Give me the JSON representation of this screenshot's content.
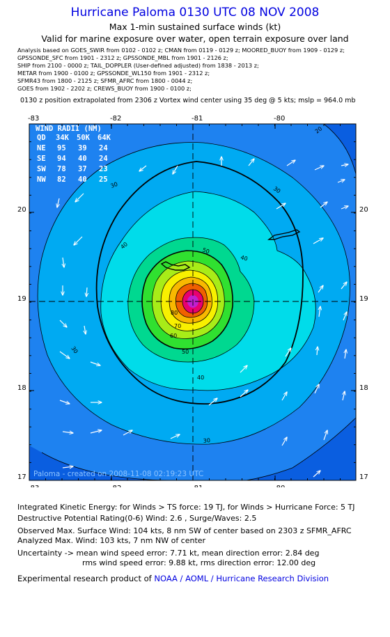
{
  "header": {
    "title": "Hurricane Paloma 0130 UTC 08 NOV 2008",
    "subtitle1": "Max 1-min sustained surface winds (kt)",
    "subtitle2": "Valid for marine exposure over water, open terrain exposure over land"
  },
  "analysis_sources": [
    "Analysis based on  GOES_SWIR from 0102 - 0102 z;  CMAN from 0119 - 0129 z;  MOORED_BUOY from 1909 - 0129 z;",
    "GPSSONDE_SFC from 1901 - 2312 z;  GPSSONDE_MBL from 1901 - 2126 z;",
    "SHIP from 2100 - 0000 z;  TAIL_DOPPLER (User-defined adjusted) from 1838 - 2013 z;",
    "METAR from 1900 - 0100 z;  GPSSONDE_WL150 from 1901 - 2312 z;",
    "SFMR43 from 1800 - 2125 z;  SFMR_AFRC from 1800 - 0044 z;",
    "GOES from 1902 - 2202 z;  CREWS_BUOY from 1900 - 0100 z;"
  ],
  "position_note": "0130 z position extrapolated from 2306 z Vortex wind center using 35 deg @ 5 kts; mslp = 964.0 mb",
  "map": {
    "lon_labels": [
      "-83",
      "-82",
      "-81",
      "-80"
    ],
    "lat_labels": [
      "20",
      "19",
      "18",
      "17"
    ],
    "lon_range": [
      -83,
      -79.5
    ],
    "lat_range": [
      16.98,
      20.9
    ],
    "center": {
      "lon": -80.97,
      "lat": 18.96
    },
    "contour_labels": [
      "20",
      "30",
      "30",
      "30",
      "30",
      "40",
      "40",
      "40",
      "50",
      "50",
      "60",
      "70",
      "80"
    ],
    "footer": "Paloma  -  created on 2008-11-08 02:19:23 UTC",
    "wind_radii": {
      "title": "WIND RADII (NM)",
      "header": [
        "QD",
        "34K",
        "50K",
        "64K"
      ],
      "rows": [
        [
          "NE",
          "95",
          "39",
          "24"
        ],
        [
          "SE",
          "94",
          "40",
          "24"
        ],
        [
          "SW",
          "78",
          "37",
          "23"
        ],
        [
          "NW",
          "82",
          "40",
          "25"
        ]
      ]
    },
    "colors": {
      "outer": "#0a5ee0",
      "band_20": "#1e82f0",
      "band_30": "#00aaf2",
      "band_40": "#00dcea",
      "band_50": "#00d890",
      "band_60": "#30e030",
      "band_70": "#a8ec18",
      "band_80": "#f8f000",
      "band_90": "#f8b800",
      "band_100": "#f06000",
      "core": "#e80070",
      "eye": "#c020d0"
    }
  },
  "metrics": {
    "ike": "Integrated Kinetic Energy:  for Winds > TS force: 19 TJ,  for Winds > Hurricane Force: 5 TJ",
    "dpr": "Destructive Potential Rating(0-6)   Wind: 2.6 , Surge/Waves: 2.5",
    "observed": "Observed Max. Surface Wind: 104 kts, 8 nm SW of center based on 2303 z SFMR_AFRC",
    "analyzed": "Analyzed Max. Wind: 103 kts, 7 nm NW of center",
    "uncertainty1": "Uncertainty -> mean wind speed error: 7.71 kt,   mean direction error: 2.84 deg",
    "uncertainty2": "rms wind speed error: 9.88 kt,   rms direction error: 12.00 deg",
    "credit_prefix": "Experimental research product of ",
    "credit_org": "NOAA / AOML / Hurricane Research Division"
  }
}
